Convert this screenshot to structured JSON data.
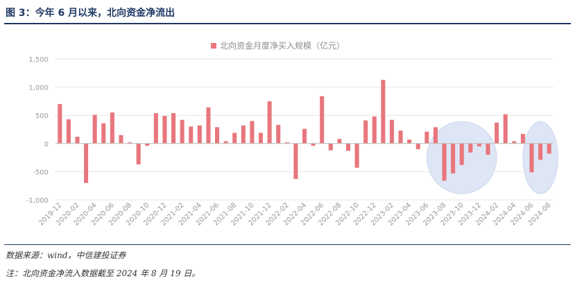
{
  "header": {
    "title": "图 3：今年 6 月以来，北向资金净流出"
  },
  "footer": {
    "source": "数据来源：wind，中信建投证券",
    "note": "注：北向资金净流入数据截至 2024 年 8 月 19 日。"
  },
  "colors": {
    "bar": "#e8767c",
    "accent": "#1f3864",
    "highlight": "#dbe3f5",
    "grid": "#e6e6e6",
    "axis_text": "#999999"
  },
  "chart_data": {
    "type": "bar",
    "title": "北向资金月度净买入规模（亿元）",
    "legend_position": "top-center",
    "grid": true,
    "ylim": [
      -1000,
      1500
    ],
    "yticks": [
      1500,
      1000,
      500,
      0,
      -500,
      -1000
    ],
    "ytick_labels": [
      "1,500",
      "1,000",
      "500",
      "0",
      "-500",
      "-1,000"
    ],
    "categories": [
      "2019-12",
      "2020-01",
      "2020-02",
      "2020-03",
      "2020-04",
      "2020-05",
      "2020-06",
      "2020-07",
      "2020-08",
      "2020-09",
      "2020-10",
      "2020-11",
      "2020-12",
      "2021-01",
      "2021-02",
      "2021-03",
      "2021-04",
      "2021-05",
      "2021-06",
      "2021-07",
      "2021-08",
      "2021-09",
      "2021-10",
      "2021-11",
      "2021-12",
      "2022-01",
      "2022-02",
      "2022-03",
      "2022-04",
      "2022-05",
      "2022-06",
      "2022-07",
      "2022-08",
      "2022-09",
      "2022-10",
      "2022-11",
      "2022-12",
      "2023-01",
      "2023-02",
      "2023-03",
      "2023-04",
      "2023-05",
      "2023-06",
      "2023-07",
      "2023-08",
      "2023-09",
      "2023-10",
      "2023-11",
      "2023-12",
      "2024-01",
      "2024-02",
      "2024-03",
      "2024-04",
      "2024-05",
      "2024-06",
      "2024-07",
      "2024-08"
    ],
    "xtick_labels": [
      "2019-12",
      "2020-02",
      "2020-04",
      "2020-06",
      "2020-08",
      "2020-10",
      "2020-12",
      "2021-02",
      "2021-04",
      "2021-06",
      "2021-08",
      "2021-10",
      "2021-12",
      "2022-02",
      "2022-04",
      "2022-06",
      "2022-08",
      "2022-10",
      "2022-12",
      "2023-02",
      "2023-04",
      "2023-06",
      "2023-08",
      "2023-10",
      "2023-12",
      "2024-02",
      "2024-04",
      "2024-06",
      "2024-08"
    ],
    "values": [
      700,
      430,
      120,
      -700,
      510,
      360,
      550,
      150,
      20,
      -370,
      -40,
      540,
      490,
      540,
      420,
      300,
      320,
      640,
      290,
      40,
      190,
      320,
      400,
      190,
      750,
      330,
      20,
      -630,
      260,
      -40,
      840,
      -120,
      80,
      -130,
      -430,
      410,
      480,
      1130,
      420,
      230,
      70,
      -100,
      210,
      290,
      -660,
      -530,
      -380,
      -160,
      -50,
      -200,
      370,
      520,
      40,
      170,
      -510,
      -290,
      -180
    ],
    "highlights": [
      {
        "from": "2023-07",
        "to": "2024-01"
      },
      {
        "from": "2024-06",
        "to": "2024-08"
      }
    ]
  }
}
